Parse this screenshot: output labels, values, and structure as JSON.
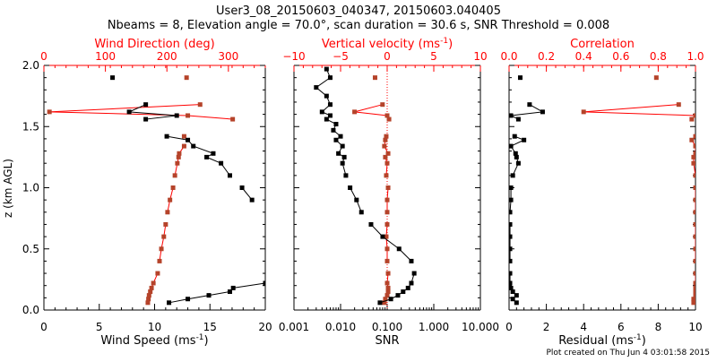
{
  "title_line1": "User3_08_20150603_040347, 20150603.040405",
  "title_line2": "Nbeams = 8, Elevation angle = 70.0°, scan duration = 30.6 s, SNR Threshold = 0.008",
  "footer": "Plot created on Thu Jun  4 03:01:58 2015",
  "colors": {
    "primary": "#000000",
    "secondary": "#b5432a",
    "axis_top": "#ff0000"
  },
  "chart_data": {
    "type": "scatter",
    "ylabel": "z (km AGL)",
    "ylim": [
      0,
      2
    ],
    "yticks": [
      "0.0",
      "0.5",
      "1.0",
      "1.5",
      "2.0"
    ],
    "z": [
      0.06,
      0.09,
      0.12,
      0.15,
      0.18,
      0.22,
      0.3,
      0.4,
      0.5,
      0.6,
      0.7,
      0.8,
      0.9,
      1.0,
      1.1,
      1.2,
      1.25,
      1.28,
      1.34,
      1.39,
      1.42,
      1.47,
      1.52,
      1.56,
      1.59,
      1.62,
      1.68,
      1.75,
      1.82,
      1.9,
      1.97
    ],
    "panels": [
      {
        "bottom": {
          "label": "Wind Speed (ms",
          "sup": "-1",
          "label_end": ")",
          "lim": [
            0,
            20
          ],
          "scale": "linear",
          "ticks": [
            0,
            5,
            10,
            15,
            20
          ],
          "ticklabels": [
            "0",
            "5",
            "10",
            "15",
            "20"
          ]
        },
        "top": {
          "label": "Wind Direction (deg)",
          "lim": [
            0,
            360
          ],
          "ticks": [
            0,
            100,
            200,
            300
          ],
          "ticklabels": [
            "0",
            "100",
            "200",
            "300"
          ]
        },
        "series_bottom": {
          "name": "Wind Speed",
          "values": [
            11.3,
            13.0,
            14.9,
            16.8,
            17.1,
            20.0,
            null,
            null,
            null,
            null,
            null,
            null,
            18.8,
            17.9,
            16.8,
            16.0,
            14.7,
            15.3,
            13.5,
            13.0,
            11.1,
            null,
            null,
            9.2,
            12.0,
            7.7,
            9.2,
            null,
            null,
            6.2,
            null
          ]
        },
        "series_top": {
          "name": "Wind Direction",
          "values": [
            169,
            170,
            171,
            173,
            175,
            178,
            185,
            188,
            191,
            195,
            198,
            201,
            205,
            210,
            213,
            217,
            219,
            220,
            228,
            null,
            228,
            null,
            null,
            307,
            234,
            9,
            254,
            null,
            null,
            232,
            null
          ]
        }
      },
      {
        "bottom": {
          "label": "SNR",
          "lim": [
            0.001,
            10
          ],
          "scale": "log",
          "ticks": [
            0.001,
            0.01,
            0.1,
            1,
            10
          ],
          "ticklabels": [
            "0.001",
            "0.010",
            "0.100",
            "1.000",
            "10.000"
          ]
        },
        "top": {
          "label": "Vertical velocity (ms",
          "sup": "-1",
          "label_end": ")",
          "lim": [
            -10,
            10
          ],
          "ticks": [
            -10,
            -5,
            0,
            5,
            10
          ],
          "ticklabels": [
            "−10",
            "−5",
            "0",
            "5",
            "10"
          ]
        },
        "series_bottom": {
          "name": "SNR",
          "values": [
            0.07,
            0.12,
            0.17,
            0.22,
            0.28,
            0.33,
            0.38,
            0.33,
            0.18,
            0.08,
            0.045,
            0.028,
            0.022,
            0.016,
            0.013,
            0.011,
            0.012,
            0.009,
            0.011,
            0.008,
            0.01,
            0.007,
            0.008,
            0.005,
            0.006,
            0.004,
            0.006,
            0.005,
            0.003,
            0.006,
            0.005
          ]
        },
        "series_top": {
          "name": "Vertical velocity",
          "values": [
            -0.3,
            -0.2,
            0.0,
            0.1,
            0.1,
            0.0,
            0.1,
            0.0,
            0.0,
            -0.1,
            0.0,
            0.0,
            0.0,
            0.1,
            -0.1,
            0.0,
            -0.2,
            0.1,
            -0.3,
            -0.2,
            -0.1,
            null,
            null,
            0.2,
            0.0,
            -3.5,
            -0.5,
            null,
            null,
            -1.3,
            null
          ]
        },
        "zero_line": 0
      },
      {
        "bottom": {
          "label": "Residual (ms",
          "sup": "-1",
          "label_end": ")",
          "lim": [
            0,
            10
          ],
          "scale": "linear",
          "ticks": [
            0,
            2,
            4,
            6,
            8,
            10
          ],
          "ticklabels": [
            "0",
            "2",
            "4",
            "6",
            "8",
            "10"
          ]
        },
        "top": {
          "label": "Correlation",
          "lim": [
            0,
            1
          ],
          "ticks": [
            0,
            0.2,
            0.4,
            0.6,
            0.8,
            1.0
          ],
          "ticklabels": [
            "0.0",
            "0.2",
            "0.4",
            "0.6",
            "0.8",
            "1.0"
          ]
        },
        "series_bottom": {
          "name": "Residual",
          "values": [
            0.4,
            0.2,
            0.4,
            0.2,
            0.1,
            0.05,
            0.05,
            0.05,
            0.05,
            0.05,
            0.05,
            0.05,
            0.1,
            0.1,
            0.2,
            0.5,
            0.4,
            0.35,
            0.1,
            0.8,
            0.3,
            null,
            null,
            0.5,
            0.1,
            1.8,
            1.1,
            null,
            null,
            0.6,
            null
          ]
        },
        "series_top": {
          "name": "Correlation",
          "values": [
            0.99,
            0.99,
            1.0,
            1.0,
            1.0,
            1.0,
            1.0,
            1.0,
            1.0,
            1.0,
            1.0,
            1.0,
            1.0,
            1.0,
            1.0,
            0.99,
            0.99,
            1.0,
            1.0,
            0.98,
            1.0,
            null,
            null,
            0.98,
            1.0,
            0.4,
            0.91,
            null,
            null,
            0.79,
            null
          ]
        }
      }
    ]
  }
}
